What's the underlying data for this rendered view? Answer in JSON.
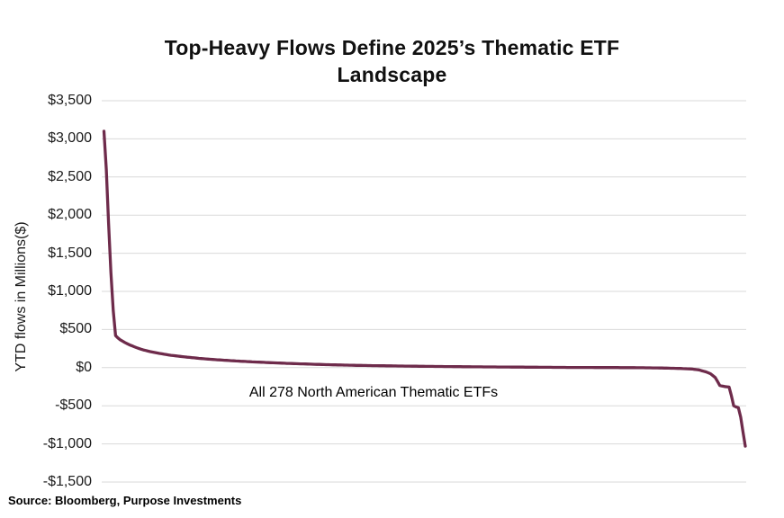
{
  "title": "Top-Heavy Flows Define 2025’s Thematic ETF Landscape",
  "annotation": "All 278 North American Thematic ETFs",
  "source": "Source: Bloomberg, Purpose Investments",
  "colors": {
    "line": "#6E2B4B",
    "gridline": "#D9D9D9",
    "title_text": "#111111",
    "axis_text": "#1A1A1A",
    "background": "#FFFFFF"
  },
  "chart_data": {
    "type": "line",
    "title": "Top-Heavy Flows Define 2025’s Thematic ETF Landscape",
    "xlabel": "",
    "ylabel": "YTD flows in Millions($)",
    "x_description": "278 North American thematic ETFs ranked by YTD flow, largest to smallest",
    "n_points": 278,
    "ylim": [
      -1500,
      3500
    ],
    "ytick_values": [
      3500,
      3000,
      2500,
      2000,
      1500,
      1000,
      500,
      0,
      -500,
      -1000,
      -1500
    ],
    "ytick_labels": [
      "$3,500",
      "$3,000",
      "$2,500",
      "$2,000",
      "$1,500",
      "$1,000",
      "$500",
      "$0",
      "-$500",
      "-$1,000",
      "-$1,500"
    ],
    "grid": "horizontal",
    "legend": "none",
    "annotation": "All 278 North American Thematic ETFs",
    "series": [
      {
        "name": "YTD flows in Millions($)",
        "interpolation": "linear between rank/value anchors (values estimated from gridlines, $M)",
        "anchors": [
          [
            1,
            3100
          ],
          [
            2,
            2600
          ],
          [
            3,
            1900
          ],
          [
            4,
            1250
          ],
          [
            5,
            750
          ],
          [
            6,
            420
          ],
          [
            7,
            390
          ],
          [
            8,
            365
          ],
          [
            10,
            330
          ],
          [
            12,
            300
          ],
          [
            14,
            275
          ],
          [
            16,
            252
          ],
          [
            18,
            232
          ],
          [
            21,
            210
          ],
          [
            24,
            192
          ],
          [
            27,
            176
          ],
          [
            30,
            162
          ],
          [
            34,
            147
          ],
          [
            38,
            134
          ],
          [
            42,
            122
          ],
          [
            46,
            112
          ],
          [
            50,
            103
          ],
          [
            55,
            93
          ],
          [
            60,
            84
          ],
          [
            65,
            76
          ],
          [
            70,
            69
          ],
          [
            75,
            62
          ],
          [
            80,
            56
          ],
          [
            85,
            51
          ],
          [
            90,
            46
          ],
          [
            95,
            41
          ],
          [
            100,
            37
          ],
          [
            110,
            30
          ],
          [
            120,
            25
          ],
          [
            130,
            21
          ],
          [
            140,
            17
          ],
          [
            150,
            14
          ],
          [
            160,
            11
          ],
          [
            170,
            9
          ],
          [
            180,
            7
          ],
          [
            190,
            5
          ],
          [
            200,
            3
          ],
          [
            210,
            2
          ],
          [
            220,
            1
          ],
          [
            228,
            0
          ],
          [
            235,
            -2
          ],
          [
            240,
            -4
          ],
          [
            245,
            -7
          ],
          [
            250,
            -11
          ],
          [
            255,
            -18
          ],
          [
            258,
            -30
          ],
          [
            261,
            -55
          ],
          [
            263,
            -80
          ],
          [
            265,
            -130
          ],
          [
            266,
            -180
          ],
          [
            267,
            -235
          ],
          [
            269,
            -248
          ],
          [
            271,
            -255
          ],
          [
            272,
            -370
          ],
          [
            273,
            -500
          ],
          [
            274,
            -515
          ],
          [
            275,
            -525
          ],
          [
            276,
            -650
          ],
          [
            277,
            -840
          ],
          [
            278,
            -1030
          ]
        ]
      }
    ]
  }
}
